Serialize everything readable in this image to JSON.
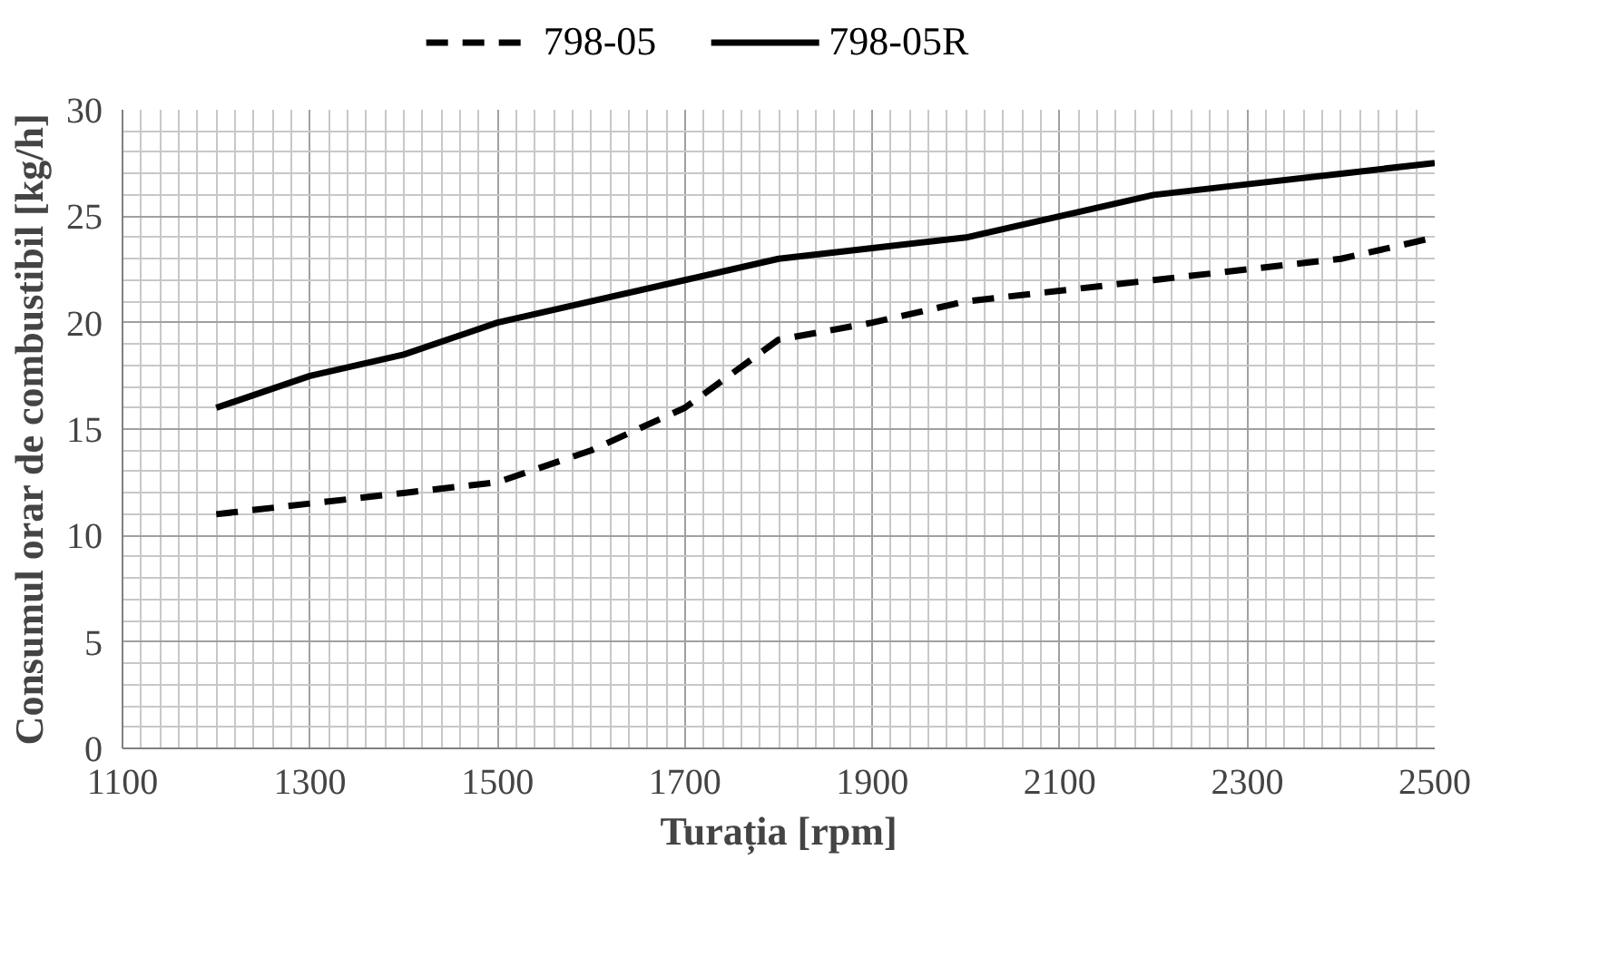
{
  "chart_data": {
    "type": "line",
    "xlabel": "Turația [rpm]",
    "ylabel": "Consumul orar de combustibil [kg/h]",
    "x": [
      1200,
      1300,
      1400,
      1500,
      1600,
      1700,
      1800,
      1900,
      2000,
      2100,
      2200,
      2300,
      2400,
      2500
    ],
    "series": [
      {
        "name": "798-05",
        "color": "#000000",
        "line_style": "dashed",
        "values": [
          11,
          11.5,
          12,
          12.5,
          14,
          16,
          19.2,
          20,
          21,
          21.5,
          22,
          22.5,
          23,
          24
        ]
      },
      {
        "name": "798-05R",
        "color": "#000000",
        "line_style": "solid",
        "values": [
          16,
          17.5,
          18.5,
          20,
          21,
          22,
          23,
          23.5,
          24,
          25,
          26,
          26.5,
          27,
          27.5
        ]
      }
    ],
    "xlim": [
      1100,
      2500
    ],
    "xticks": [
      1100,
      1300,
      1500,
      1700,
      1900,
      2100,
      2300,
      2500
    ],
    "ylim": [
      0,
      30
    ],
    "yticks": [
      0,
      5,
      10,
      15,
      20,
      25,
      30
    ],
    "grid": true,
    "legend": "top",
    "marker": "none"
  }
}
